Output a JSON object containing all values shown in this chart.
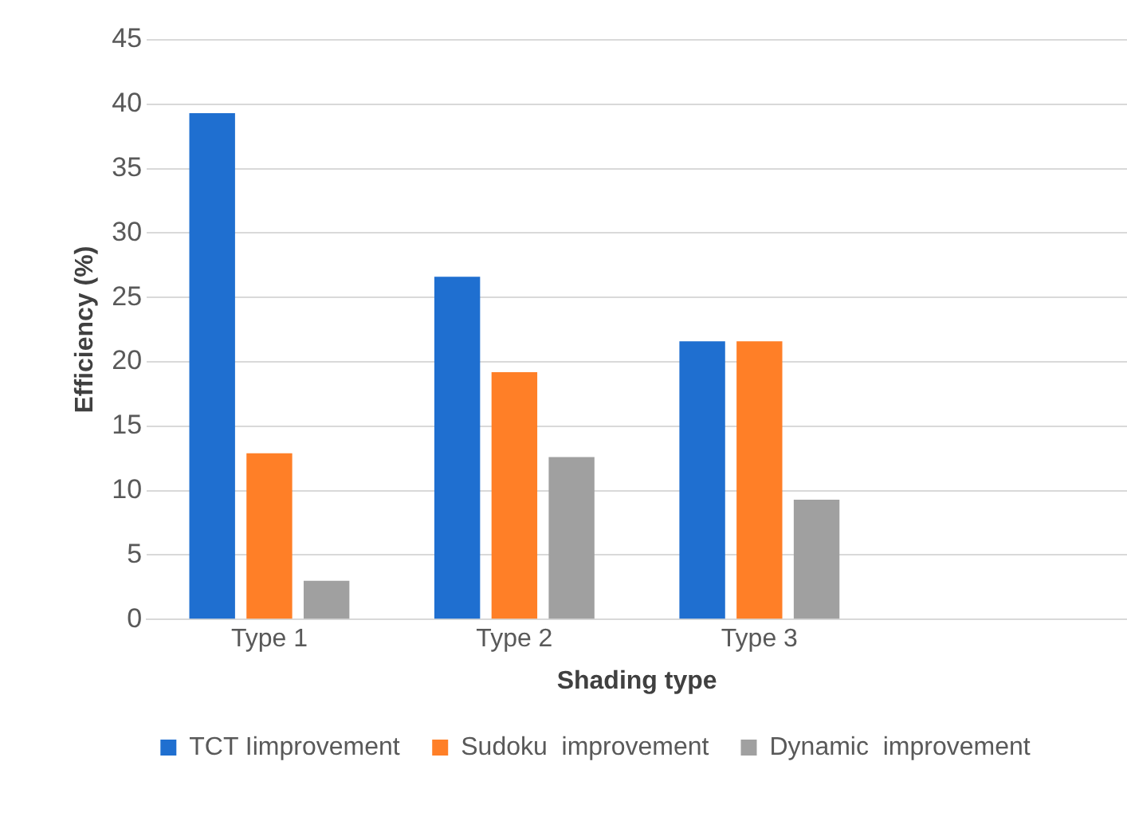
{
  "chart_data": {
    "type": "bar",
    "xlabel": "Shading type",
    "ylabel": "Efficiency (%)",
    "categories": [
      "Type 1",
      "Type 2",
      "Type 3",
      null
    ],
    "series": [
      {
        "name": "TCT Iimprovement",
        "color": "#1f6fd0",
        "values": [
          39.3,
          26.6,
          21.6,
          null
        ]
      },
      {
        "name": "Sudoku  improvement",
        "color": "#ff7f27",
        "values": [
          12.9,
          19.2,
          21.6,
          null
        ]
      },
      {
        "name": "Dynamic  improvement",
        "color": "#a0a0a0",
        "values": [
          3.0,
          12.6,
          9.3,
          null
        ]
      }
    ],
    "ylim": [
      0,
      45
    ],
    "yticks": [
      0,
      5,
      10,
      15,
      20,
      25,
      30,
      35,
      40,
      45
    ],
    "grid": "y",
    "legend": "bottom"
  }
}
